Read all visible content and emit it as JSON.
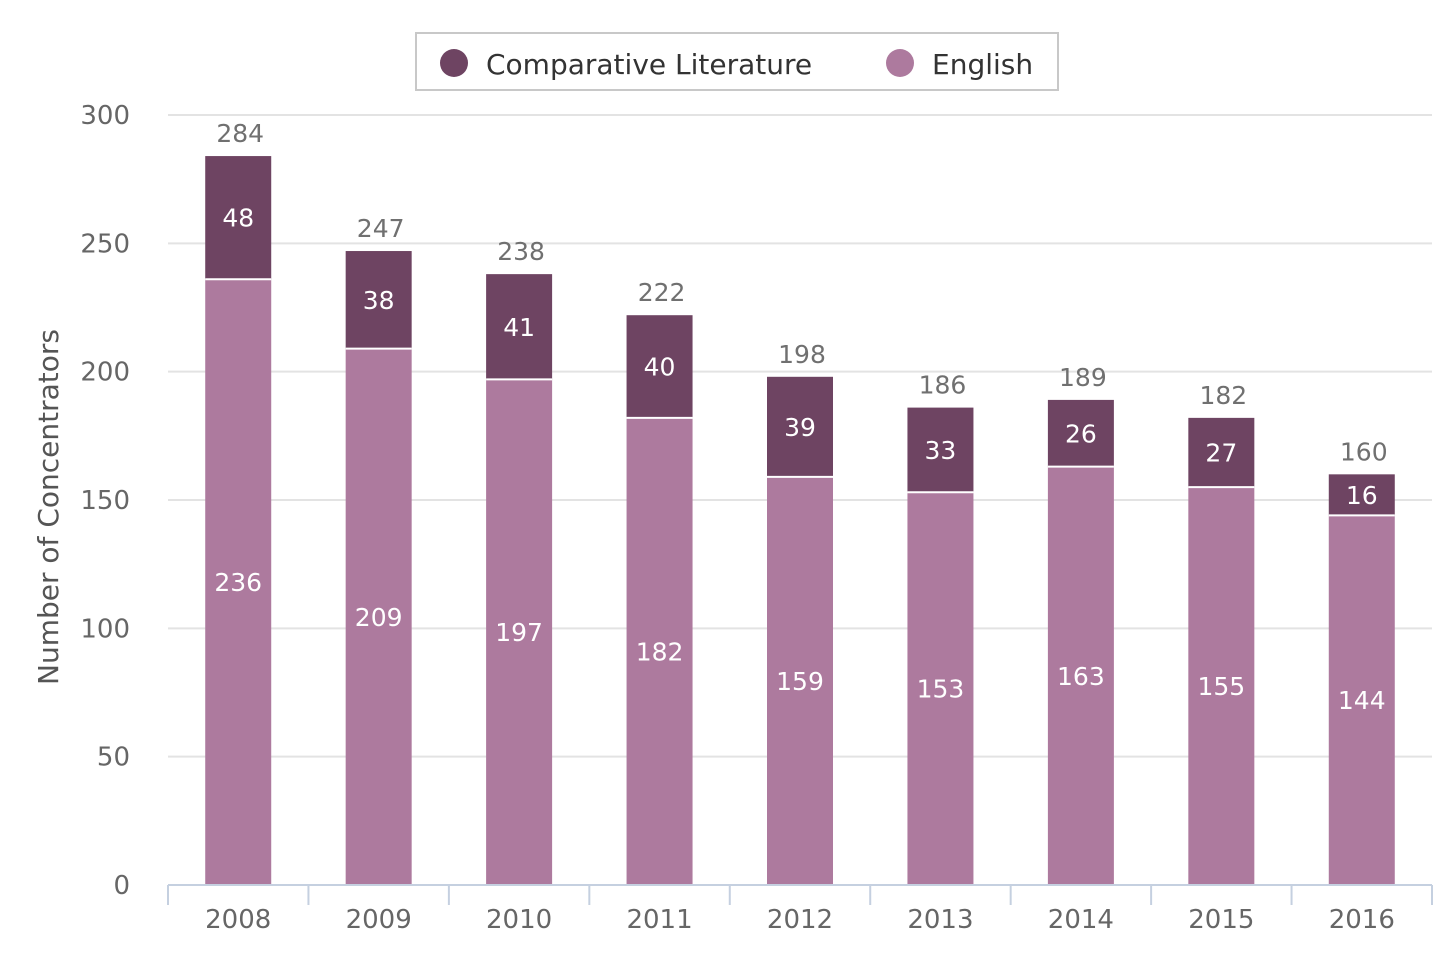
{
  "chart_data": {
    "type": "bar",
    "stacked": true,
    "categories": [
      "2008",
      "2009",
      "2010",
      "2011",
      "2012",
      "2013",
      "2014",
      "2015",
      "2016"
    ],
    "series": [
      {
        "name": "English",
        "color": "#ad7a9e",
        "values": [
          236,
          209,
          197,
          182,
          159,
          153,
          163,
          155,
          144
        ]
      },
      {
        "name": "Comparative Literature",
        "color": "#6e4462",
        "values": [
          48,
          38,
          41,
          40,
          39,
          33,
          26,
          27,
          16
        ]
      }
    ],
    "totals": [
      284,
      247,
      238,
      222,
      198,
      186,
      189,
      182,
      160
    ],
    "title": "",
    "xlabel": "",
    "ylabel": "Number of Concentrators",
    "ylim": [
      0,
      300
    ],
    "yticks": [
      0,
      50,
      100,
      150,
      200,
      250,
      300
    ],
    "grid": true,
    "legend": {
      "placement": "top-center",
      "items": [
        "Comparative Literature",
        "English"
      ]
    }
  }
}
